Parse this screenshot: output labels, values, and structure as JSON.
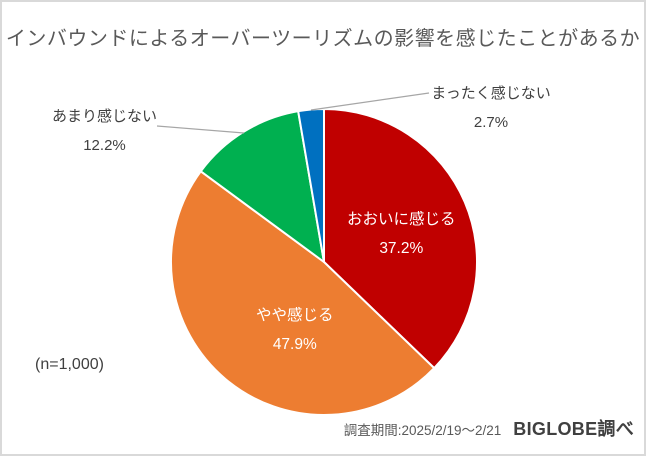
{
  "title": "インバウンドによるオーバーツーリズムの影響を感じたことがあるか",
  "sample_note": "(n=1,000)",
  "footer": {
    "survey_period": "調査期間:2025/2/19〜2/21",
    "credit": "BIGLOBE調べ"
  },
  "chart_data": {
    "type": "pie",
    "title": "インバウンドによるオーバーツーリズムの影響を感じたことがあるか",
    "sample_note": "(n=1,000)",
    "start_angle_deg": -90,
    "direction": "clockwise",
    "slice_border_color": "#ffffff",
    "leader_line_color": "#a6a6a6",
    "inside_label_color": "#ffffff",
    "slices": [
      {
        "label": "おおいに感じる",
        "value": 37.2,
        "pct_label": "37.2%",
        "color": "#c00000",
        "label_position": "inside"
      },
      {
        "label": "やや感じる",
        "value": 47.9,
        "pct_label": "47.9%",
        "color": "#ed7d31",
        "label_position": "inside"
      },
      {
        "label": "あまり感じない",
        "value": 12.2,
        "pct_label": "12.2%",
        "color": "#00b050",
        "label_position": "outside-left"
      },
      {
        "label": "まったく感じない",
        "value": 2.7,
        "pct_label": "2.7%",
        "color": "#0070c0",
        "label_position": "outside-right"
      }
    ]
  }
}
